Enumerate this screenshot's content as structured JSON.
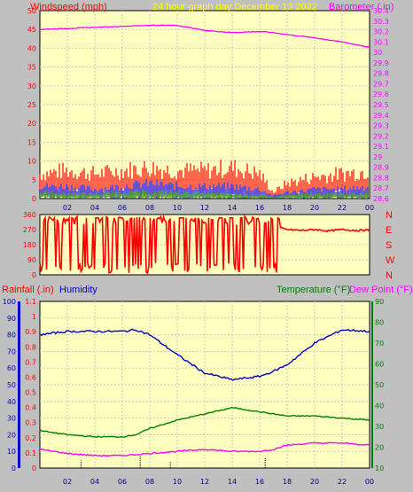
{
  "header": {
    "wind_title": "Windspeed (mph)",
    "graph_title": "24 hour graph day   December 13 2022",
    "baro_title": "Barometer (.in)",
    "rain_title": "Rainfall (.in)",
    "humidity_title": "Humidity",
    "temp_title": "Temperature (°F)",
    "dew_title": "Dew Point (°F)"
  },
  "colors": {
    "background": "#c0c0c0",
    "plot_bg": "#ffffc0",
    "wind_red": "#ff0000",
    "wind_blue": "#0000ff",
    "wind_green": "#008000",
    "barometer": "#ff00ff",
    "title_yellow": "#ffff00",
    "humidity": "#0000c8",
    "temperature": "#008000",
    "dewpoint": "#ff00ff"
  },
  "chart_data": [
    {
      "type": "line",
      "id": "wind-baro",
      "x_ticks": [
        "02",
        "04",
        "06",
        "08",
        "10",
        "12",
        "14",
        "16",
        "18",
        "20",
        "22",
        "00"
      ],
      "xlim": [
        0,
        24
      ],
      "left_axis": {
        "ticks": [
          "0",
          "5",
          "10",
          "15",
          "20",
          "25",
          "30",
          "35",
          "40",
          "45",
          "50"
        ],
        "ylim": [
          0,
          50
        ]
      },
      "right_axis": {
        "ticks": [
          "28.6",
          "28.7",
          "28.8",
          "28.9",
          "29",
          "29.1",
          "29.2",
          "29.3",
          "29.4",
          "29.5",
          "29.6",
          "29.7",
          "29.8",
          "29.9",
          "30",
          "30.1",
          "30.2",
          "30.3",
          "30.4"
        ],
        "ylim": [
          28.6,
          30.4
        ]
      },
      "grid": true,
      "series": [
        {
          "name": "Barometer (.in)",
          "axis": "right",
          "x": [
            0,
            2,
            4,
            6,
            8,
            10,
            12,
            14,
            16,
            17,
            18,
            20,
            22,
            24
          ],
          "y": [
            30.22,
            30.23,
            30.24,
            30.25,
            30.26,
            30.26,
            30.21,
            30.19,
            30.2,
            30.19,
            30.17,
            30.14,
            30.1,
            30.05
          ]
        },
        {
          "axis": "left",
          "style": "band",
          "x": [
            0,
            2,
            4,
            6,
            8,
            10,
            12,
            14,
            16,
            17,
            18,
            20,
            22,
            24
          ],
          "y": [
            8,
            9,
            8,
            9,
            10,
            9,
            9,
            10,
            8,
            2,
            5,
            7,
            8,
            9
          ]
        },
        {
          "axis": "left",
          "style": "band",
          "x": [
            0,
            2,
            4,
            6,
            8,
            10,
            12,
            14,
            16,
            17,
            18,
            20,
            22,
            24
          ],
          "y": [
            4,
            4,
            3,
            4,
            5,
            4,
            4,
            4,
            3,
            1,
            2,
            3,
            3,
            4
          ]
        },
        {
          "axis": "left",
          "style": "band",
          "x": [
            0,
            2,
            4,
            6,
            8,
            10,
            12,
            14,
            16,
            17,
            18,
            20,
            22,
            24
          ],
          "y": [
            2,
            1.5,
            1.5,
            2,
            2,
            2,
            1.5,
            1.5,
            1,
            0.5,
            1,
            1.5,
            1.5,
            2
          ]
        }
      ]
    },
    {
      "type": "line",
      "id": "wind-direction",
      "y_ticks": [
        "0",
        "90",
        "180",
        "270",
        "360"
      ],
      "ylim": [
        0,
        360
      ],
      "xlim": [
        0,
        24
      ],
      "direction_labels": [
        "N",
        "W",
        "S",
        "E",
        "N"
      ],
      "series": [
        {
          "name": "Wind direction",
          "x": [
            0,
            1,
            2,
            3,
            4,
            5,
            6,
            7,
            8,
            9,
            10,
            11,
            12,
            13,
            14,
            15,
            16,
            17,
            17.5,
            18,
            19,
            20,
            21,
            22,
            23,
            24
          ],
          "y": [
            340,
            20,
            320,
            30,
            330,
            20,
            300,
            60,
            320,
            30,
            340,
            20,
            330,
            60,
            320,
            40,
            300,
            340,
            280,
            270,
            265,
            270,
            262,
            270,
            265,
            268
          ]
        }
      ]
    },
    {
      "type": "line",
      "id": "humidity-temp",
      "xlim": [
        0,
        24
      ],
      "left_axis": {
        "ticks": [
          "0",
          "10",
          "20",
          "30",
          "40",
          "50",
          "60",
          "70",
          "80",
          "90",
          "100"
        ],
        "ylim": [
          0,
          100
        ]
      },
      "rain_axis": {
        "ticks": [
          "0",
          "0.1",
          "0.2",
          "0.3",
          "0.4",
          "0.5",
          "0.6",
          "0.7",
          "0.8",
          "0.9",
          "1",
          "1.1"
        ],
        "ylim": [
          0,
          1.1
        ]
      },
      "right_axis": {
        "ticks": [
          "10",
          "20",
          "30",
          "40",
          "50",
          "60",
          "70",
          "80",
          "90"
        ],
        "ylim": [
          10,
          90
        ]
      },
      "series": [
        {
          "name": "Humidity",
          "axis": "left",
          "x": [
            0,
            2,
            4,
            6,
            7,
            8,
            10,
            12,
            14,
            16,
            17,
            18,
            20,
            22,
            24
          ],
          "y": [
            80,
            82,
            82,
            82,
            83,
            80,
            68,
            57,
            53,
            55,
            58,
            62,
            75,
            83,
            82
          ]
        },
        {
          "name": "Temperature (°F)",
          "axis": "right",
          "x": [
            0,
            2,
            4,
            6,
            7,
            8,
            10,
            12,
            14,
            16,
            18,
            20,
            22,
            24
          ],
          "y": [
            28,
            26,
            25,
            25,
            26,
            29,
            33,
            36,
            39,
            37,
            35,
            35,
            34,
            33
          ]
        },
        {
          "name": "Dew Point (°F)",
          "axis": "right",
          "x": [
            0,
            2,
            4,
            6,
            8,
            10,
            12,
            14,
            16,
            17,
            18,
            20,
            22,
            24
          ],
          "y": [
            19,
            17,
            16,
            16,
            17,
            18,
            19,
            18,
            18,
            19,
            21,
            22,
            22,
            21
          ]
        },
        {
          "name": "Rainfall (.in)",
          "axis": "rain",
          "style": "ticks",
          "x": [
            3,
            7.3,
            9.5,
            16.4
          ],
          "y": [
            0.05,
            0.08,
            0.04,
            0.07
          ]
        }
      ]
    }
  ]
}
